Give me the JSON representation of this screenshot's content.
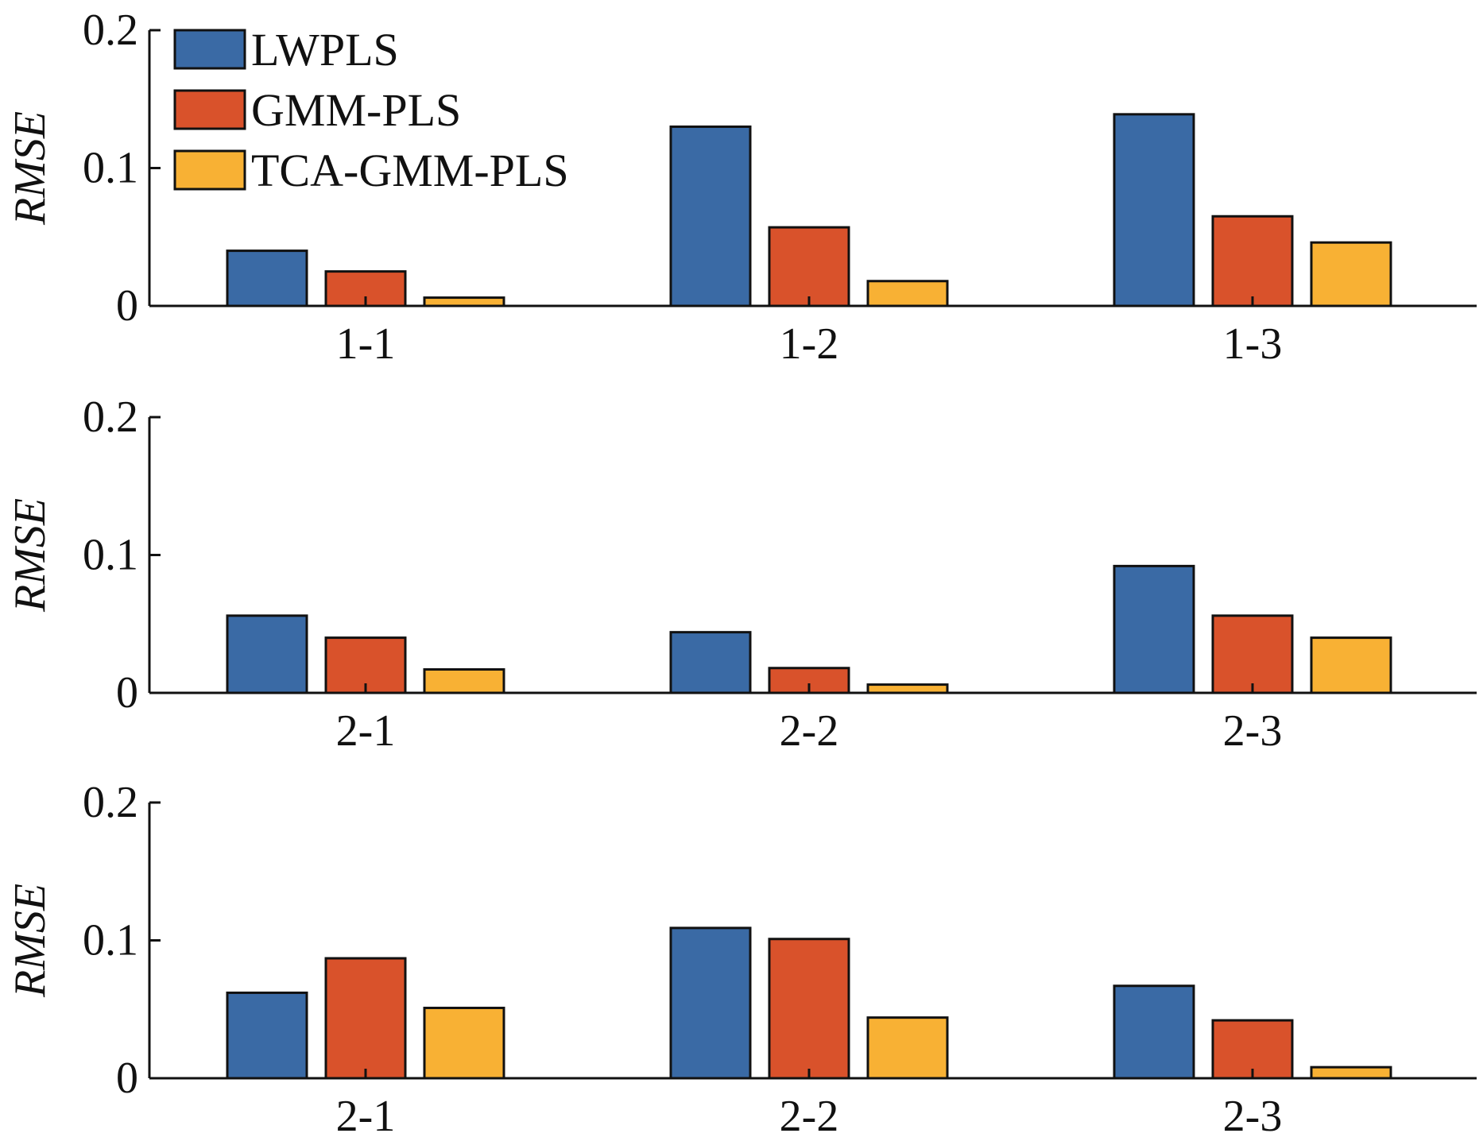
{
  "chart_data": [
    {
      "type": "bar",
      "ylabel": "RMSE",
      "ylim": [
        0,
        0.2
      ],
      "yticks": [
        "0",
        "0.1",
        "0.2"
      ],
      "categories": [
        "1-1",
        "1-2",
        "1-3"
      ],
      "legend": "top-left",
      "series": [
        {
          "name": "LWPLS",
          "color": "#3a6aa5",
          "values": [
            0.04,
            0.13,
            0.139
          ]
        },
        {
          "name": "GMM-PLS",
          "color": "#d9522b",
          "values": [
            0.025,
            0.057,
            0.065
          ]
        },
        {
          "name": "TCA-GMM-PLS",
          "color": "#f8b134",
          "values": [
            0.006,
            0.018,
            0.046
          ]
        }
      ]
    },
    {
      "type": "bar",
      "ylabel": "RMSE",
      "ylim": [
        0,
        0.2
      ],
      "yticks": [
        "0",
        "0.1",
        "0.2"
      ],
      "categories": [
        "2-1",
        "2-2",
        "2-3"
      ],
      "series": [
        {
          "name": "LWPLS",
          "color": "#3a6aa5",
          "values": [
            0.056,
            0.044,
            0.092
          ]
        },
        {
          "name": "GMM-PLS",
          "color": "#d9522b",
          "values": [
            0.04,
            0.018,
            0.056
          ]
        },
        {
          "name": "TCA-GMM-PLS",
          "color": "#f8b134",
          "values": [
            0.017,
            0.006,
            0.04
          ]
        }
      ]
    },
    {
      "type": "bar",
      "ylabel": "RMSE",
      "ylim": [
        0,
        0.2
      ],
      "yticks": [
        "0",
        "0.1",
        "0.2"
      ],
      "categories": [
        "2-1",
        "2-2",
        "2-3"
      ],
      "series": [
        {
          "name": "LWPLS",
          "color": "#3a6aa5",
          "values": [
            0.062,
            0.109,
            0.067
          ]
        },
        {
          "name": "GMM-PLS",
          "color": "#d9522b",
          "values": [
            0.087,
            0.101,
            0.042
          ]
        },
        {
          "name": "TCA-GMM-PLS",
          "color": "#f8b134",
          "values": [
            0.051,
            0.044,
            0.008
          ]
        }
      ]
    }
  ]
}
